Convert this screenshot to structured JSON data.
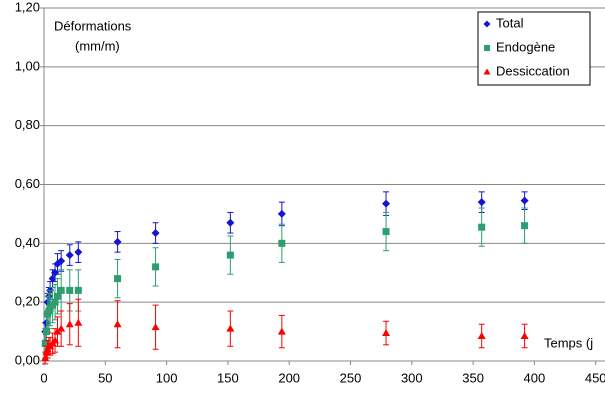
{
  "chart_data": {
    "type": "scatter",
    "annotations": [
      "Déformations",
      "(mm/m)"
    ],
    "x_label": "Temps (j",
    "xlim": [
      0,
      450
    ],
    "xticks": [
      0,
      50,
      100,
      150,
      200,
      250,
      300,
      350,
      400,
      450
    ],
    "ylim": [
      0,
      1.2
    ],
    "yticks": [
      {
        "value": 0,
        "label": "0,00"
      },
      {
        "value": 0.2,
        "label": "0,20"
      },
      {
        "value": 0.4,
        "label": "0,40"
      },
      {
        "value": 0.6,
        "label": "0,60"
      },
      {
        "value": 0.8,
        "label": "0,80"
      },
      {
        "value": 1.0,
        "label": "1,00"
      },
      {
        "value": 1.2,
        "label": "1,20"
      }
    ],
    "grid": true,
    "legend": "top-right",
    "x": [
      1,
      2,
      3,
      4,
      5,
      7,
      9,
      11,
      14,
      21,
      28,
      60,
      91,
      152,
      194,
      279,
      357,
      392
    ],
    "series": [
      {
        "name": "Total",
        "color": "#1414d2",
        "marker": "diamond",
        "values": [
          0.1,
          0.13,
          0.2,
          0.22,
          0.24,
          0.28,
          0.3,
          0.33,
          0.34,
          0.36,
          0.37,
          0.405,
          0.435,
          0.47,
          0.5,
          0.535,
          0.54,
          0.545
        ],
        "errors": [
          0.03,
          0.03,
          0.03,
          0.03,
          0.03,
          0.03,
          0.03,
          0.035,
          0.035,
          0.035,
          0.035,
          0.035,
          0.035,
          0.035,
          0.04,
          0.04,
          0.035,
          0.03
        ]
      },
      {
        "name": "Endogène",
        "color": "#2e9e70",
        "marker": "square",
        "values": [
          0.06,
          0.1,
          0.16,
          0.17,
          0.18,
          0.19,
          0.2,
          0.22,
          0.24,
          0.24,
          0.24,
          0.28,
          0.32,
          0.36,
          0.4,
          0.44,
          0.455,
          0.46
        ],
        "errors": [
          0.05,
          0.05,
          0.06,
          0.06,
          0.06,
          0.06,
          0.06,
          0.06,
          0.07,
          0.07,
          0.07,
          0.065,
          0.065,
          0.065,
          0.065,
          0.065,
          0.065,
          0.06
        ]
      },
      {
        "name": "Dessiccation",
        "color": "#ff0000",
        "marker": "triangle",
        "values": [
          0.01,
          0.03,
          0.04,
          0.05,
          0.05,
          0.06,
          0.07,
          0.1,
          0.11,
          0.125,
          0.13,
          0.125,
          0.115,
          0.11,
          0.1,
          0.095,
          0.085,
          0.085
        ],
        "errors": [
          0.02,
          0.02,
          0.03,
          0.03,
          0.03,
          0.035,
          0.04,
          0.05,
          0.06,
          0.07,
          0.08,
          0.08,
          0.075,
          0.06,
          0.055,
          0.04,
          0.04,
          0.04
        ]
      }
    ]
  }
}
